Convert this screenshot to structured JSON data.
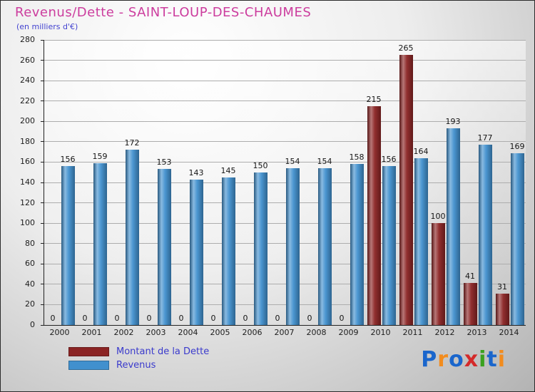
{
  "header": {
    "title": "Revenus/Dette - SAINT-LOUP-DES-CHAUMES",
    "subtitle": "(en milliers d'€)"
  },
  "chart_data": {
    "type": "bar",
    "title": "Revenus/Dette - SAINT-LOUP-DES-CHAUMES",
    "subtitle": "(en milliers d'€)",
    "categories": [
      "2000",
      "2001",
      "2002",
      "2003",
      "2004",
      "2005",
      "2006",
      "2007",
      "2008",
      "2009",
      "2010",
      "2011",
      "2012",
      "2013",
      "2014"
    ],
    "series": [
      {
        "name": "Montant de la Dette",
        "color": "#8b2424",
        "values": [
          0,
          0,
          0,
          0,
          0,
          0,
          0,
          0,
          0,
          0,
          215,
          265,
          100,
          41,
          31
        ]
      },
      {
        "name": "Revenus",
        "color": "#4190ce",
        "values": [
          156,
          159,
          172,
          153,
          143,
          145,
          150,
          154,
          154,
          158,
          156,
          164,
          193,
          177,
          169
        ]
      }
    ],
    "ylim": [
      0,
      280
    ],
    "ytick_step": 20,
    "grid": true,
    "legend_position": "bottom-left"
  },
  "legend": {
    "items": [
      {
        "label": "Montant de la Dette",
        "color": "#8b2424"
      },
      {
        "label": "Revenus",
        "color": "#4190ce"
      }
    ]
  },
  "logo": {
    "name": "Proxiti",
    "letters": [
      {
        "char": "P",
        "color": "#1a66cc"
      },
      {
        "char": "r",
        "color": "#f28c1e"
      },
      {
        "char": "o",
        "color": "#1a66cc"
      },
      {
        "char": "x",
        "color": "#d42a2a"
      },
      {
        "char": "i",
        "color": "#3aa11e"
      },
      {
        "char": "t",
        "color": "#1a66cc"
      },
      {
        "char": "i",
        "color": "#f28c1e"
      }
    ]
  }
}
